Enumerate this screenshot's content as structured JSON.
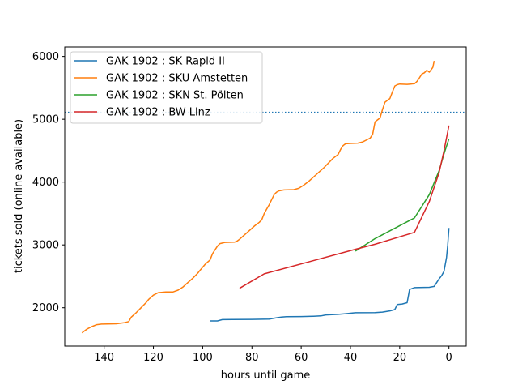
{
  "chart_data": {
    "type": "line",
    "title": "",
    "xlabel": "hours until game",
    "ylabel": "tickets sold (online available)",
    "xlim": [
      156,
      -7
    ],
    "ylim": [
      1390,
      6150
    ],
    "xticks": [
      140,
      120,
      100,
      80,
      60,
      40,
      20,
      0
    ],
    "yticks": [
      2000,
      3000,
      4000,
      5000,
      6000
    ],
    "legend_position": "top-left",
    "reference_line": {
      "y": 5110,
      "style": "dotted",
      "color": "#1f77b4"
    },
    "series": [
      {
        "name": "GAK 1902 : SK Rapid II",
        "color": "#1f77b4",
        "points": [
          [
            97,
            1790
          ],
          [
            94,
            1790
          ],
          [
            92,
            1810
          ],
          [
            88,
            1812
          ],
          [
            80,
            1815
          ],
          [
            73,
            1820
          ],
          [
            70,
            1840
          ],
          [
            68,
            1850
          ],
          [
            66,
            1858
          ],
          [
            60,
            1860
          ],
          [
            55,
            1865
          ],
          [
            52,
            1870
          ],
          [
            50,
            1885
          ],
          [
            45,
            1895
          ],
          [
            42,
            1905
          ],
          [
            38,
            1920
          ],
          [
            30,
            1922
          ],
          [
            27,
            1930
          ],
          [
            24,
            1950
          ],
          [
            22,
            1970
          ],
          [
            21,
            2050
          ],
          [
            19,
            2060
          ],
          [
            17,
            2080
          ],
          [
            16,
            2290
          ],
          [
            14,
            2320
          ],
          [
            8,
            2325
          ],
          [
            6,
            2340
          ],
          [
            5,
            2400
          ],
          [
            4,
            2460
          ],
          [
            3,
            2510
          ],
          [
            2,
            2580
          ],
          [
            1,
            2800
          ],
          [
            0.5,
            3000
          ],
          [
            0,
            3270
          ]
        ]
      },
      {
        "name": "GAK 1902 : SKU Amstetten",
        "color": "#ff7f0e",
        "points": [
          [
            149,
            1600
          ],
          [
            147,
            1660
          ],
          [
            145,
            1700
          ],
          [
            143,
            1730
          ],
          [
            141,
            1740
          ],
          [
            135,
            1745
          ],
          [
            132,
            1760
          ],
          [
            130,
            1780
          ],
          [
            129,
            1850
          ],
          [
            127,
            1920
          ],
          [
            125,
            2000
          ],
          [
            123,
            2080
          ],
          [
            122,
            2130
          ],
          [
            120,
            2200
          ],
          [
            118,
            2240
          ],
          [
            115,
            2250
          ],
          [
            112,
            2252
          ],
          [
            110,
            2280
          ],
          [
            108,
            2330
          ],
          [
            106,
            2400
          ],
          [
            104,
            2470
          ],
          [
            102,
            2550
          ],
          [
            101,
            2600
          ],
          [
            99,
            2690
          ],
          [
            97,
            2760
          ],
          [
            96,
            2860
          ],
          [
            95,
            2920
          ],
          [
            94,
            2980
          ],
          [
            93,
            3020
          ],
          [
            91,
            3040
          ],
          [
            87,
            3045
          ],
          [
            86,
            3060
          ],
          [
            85,
            3090
          ],
          [
            83,
            3160
          ],
          [
            81,
            3230
          ],
          [
            79,
            3300
          ],
          [
            77,
            3360
          ],
          [
            76,
            3400
          ],
          [
            75,
            3500
          ],
          [
            74,
            3570
          ],
          [
            73,
            3640
          ],
          [
            72,
            3720
          ],
          [
            71,
            3800
          ],
          [
            70,
            3840
          ],
          [
            69,
            3860
          ],
          [
            67,
            3875
          ],
          [
            63,
            3880
          ],
          [
            61,
            3900
          ],
          [
            59,
            3950
          ],
          [
            57,
            4010
          ],
          [
            55,
            4080
          ],
          [
            53,
            4150
          ],
          [
            51,
            4220
          ],
          [
            49,
            4300
          ],
          [
            47,
            4380
          ],
          [
            45,
            4440
          ],
          [
            44,
            4520
          ],
          [
            43,
            4580
          ],
          [
            42,
            4610
          ],
          [
            40,
            4615
          ],
          [
            37,
            4620
          ],
          [
            35,
            4640
          ],
          [
            33,
            4680
          ],
          [
            32,
            4700
          ],
          [
            31,
            4760
          ],
          [
            30,
            4960
          ],
          [
            29,
            4990
          ],
          [
            28,
            5020
          ],
          [
            27,
            5150
          ],
          [
            26,
            5270
          ],
          [
            25,
            5300
          ],
          [
            24,
            5330
          ],
          [
            23,
            5430
          ],
          [
            22,
            5530
          ],
          [
            21,
            5550
          ],
          [
            20,
            5560
          ],
          [
            17,
            5555
          ],
          [
            14,
            5565
          ],
          [
            13,
            5600
          ],
          [
            12,
            5660
          ],
          [
            11,
            5720
          ],
          [
            10,
            5740
          ],
          [
            9,
            5780
          ],
          [
            8,
            5750
          ],
          [
            7,
            5800
          ],
          [
            6.5,
            5830
          ],
          [
            6,
            5930
          ]
        ]
      },
      {
        "name": "GAK 1902 : SKN St. Pölten",
        "color": "#2ca02c",
        "points": [
          [
            38,
            2900
          ],
          [
            30,
            3100
          ],
          [
            14,
            3430
          ],
          [
            8,
            3800
          ],
          [
            4,
            4180
          ],
          [
            2,
            4450
          ],
          [
            0,
            4690
          ]
        ]
      },
      {
        "name": "GAK 1902 : BW Linz",
        "color": "#d62728",
        "points": [
          [
            85,
            2310
          ],
          [
            75,
            2540
          ],
          [
            38,
            2930
          ],
          [
            30,
            3010
          ],
          [
            14,
            3200
          ],
          [
            8,
            3690
          ],
          [
            4,
            4150
          ],
          [
            2,
            4500
          ],
          [
            0,
            4900
          ]
        ]
      }
    ]
  }
}
